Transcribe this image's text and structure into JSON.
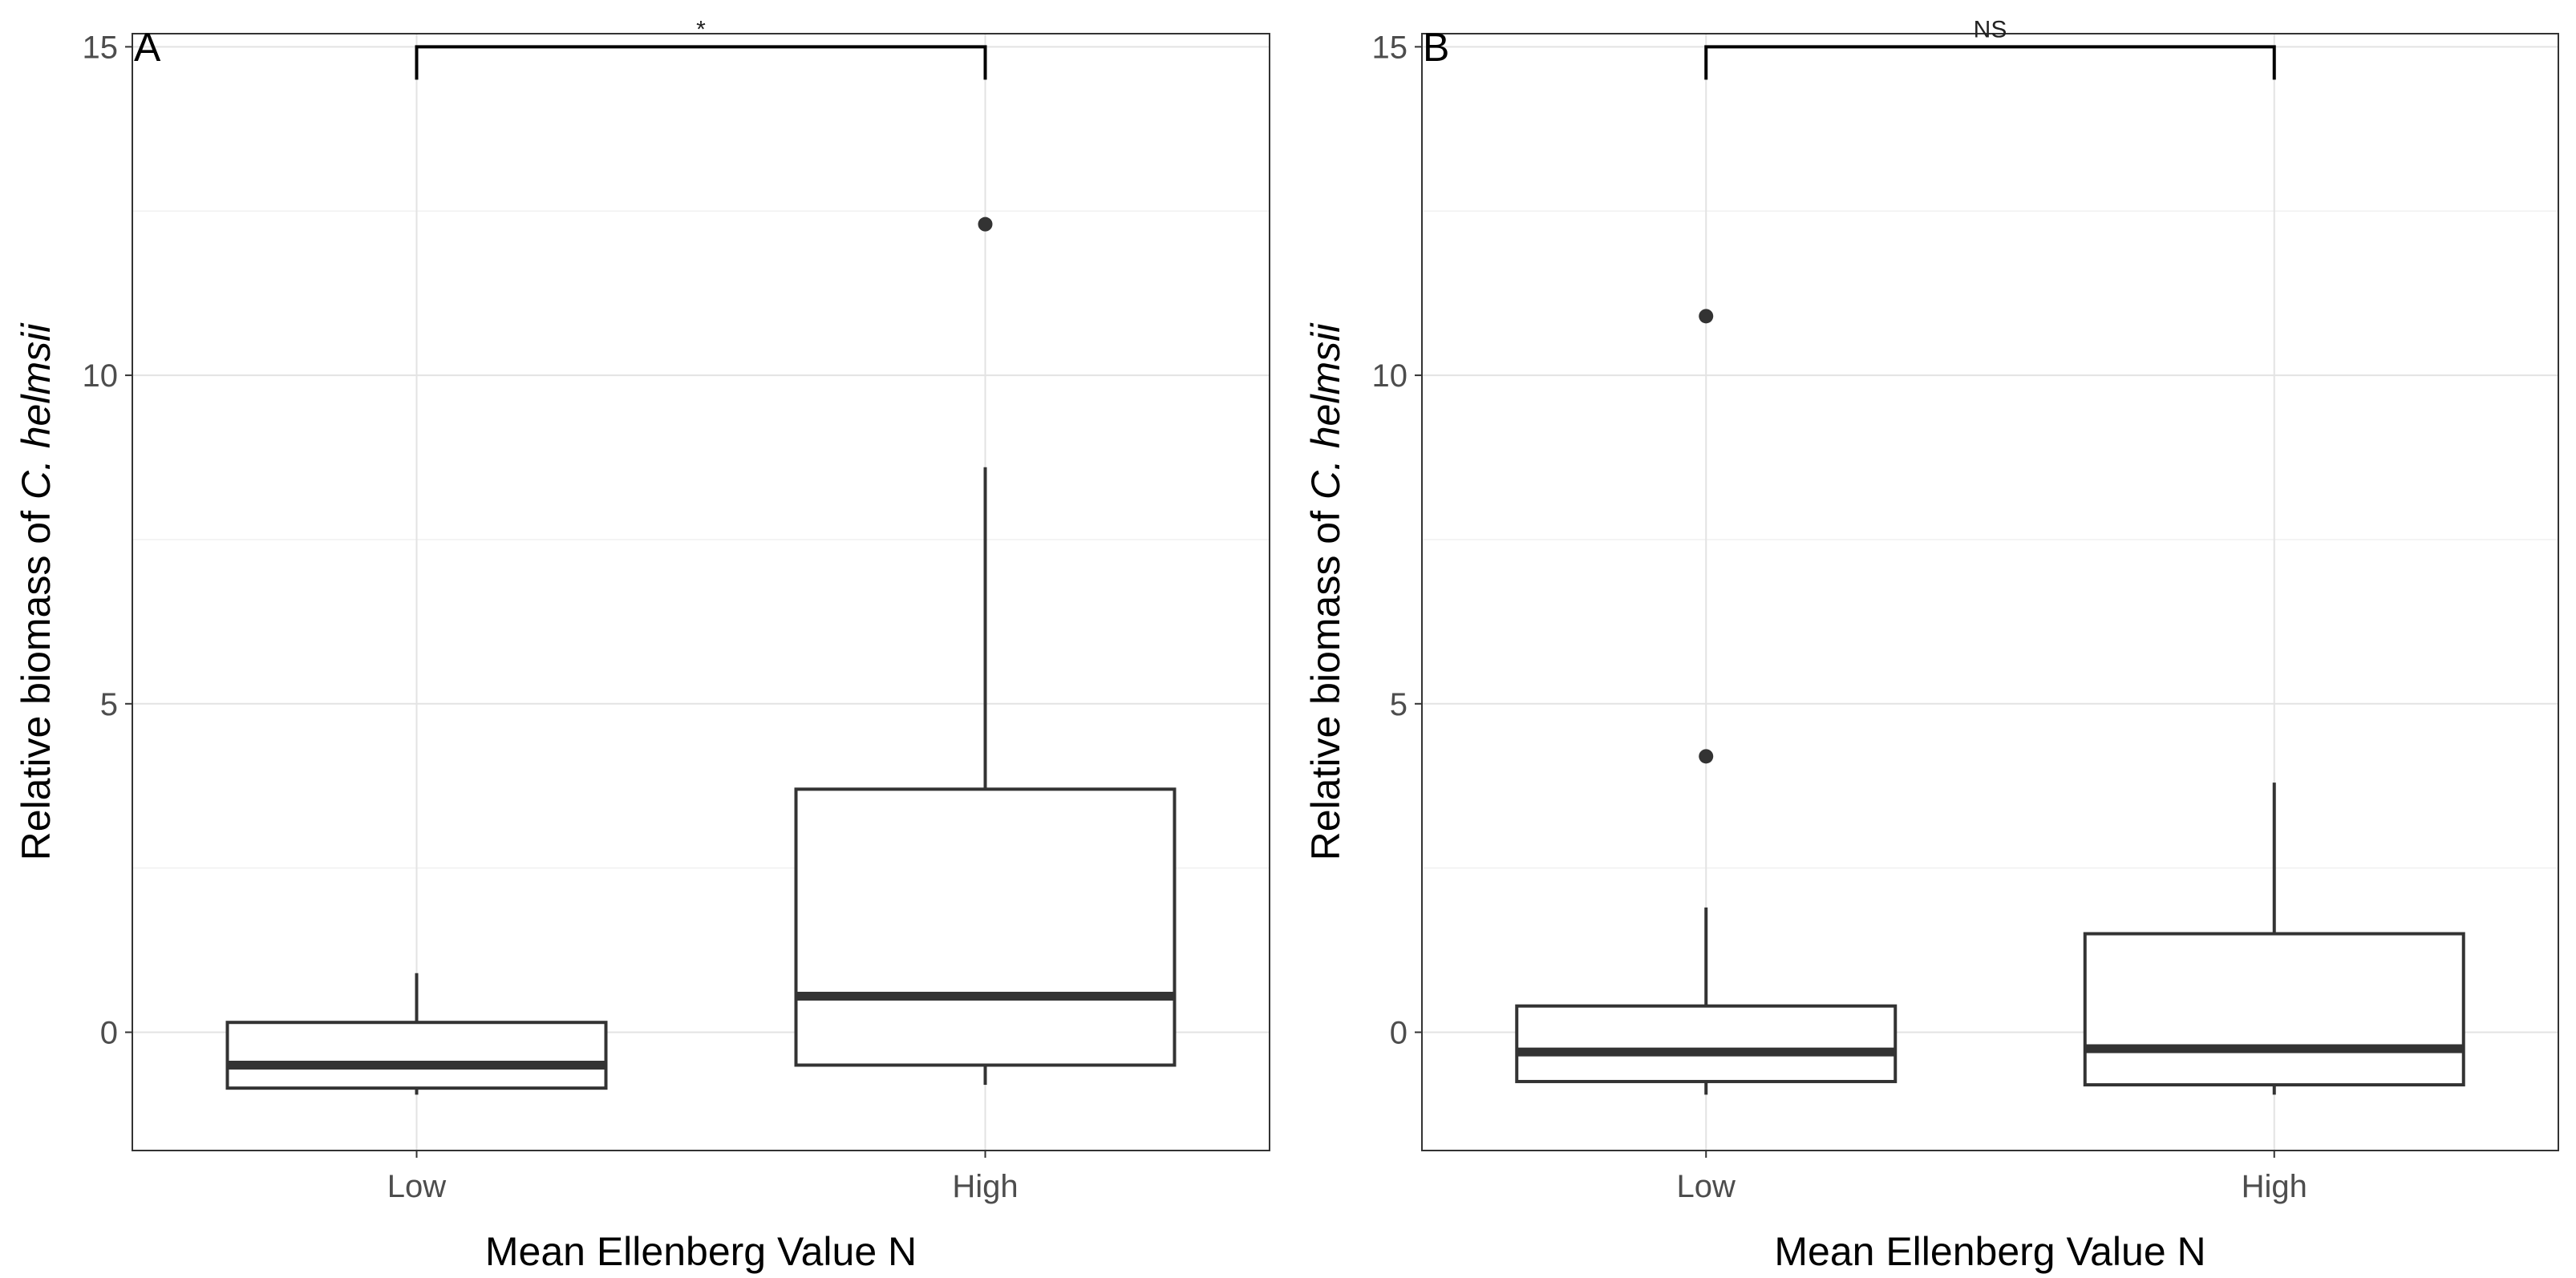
{
  "chart_data": [
    {
      "panel": "A",
      "type": "boxplot",
      "categories": [
        "Low",
        "High"
      ],
      "xlabel": "Mean Ellenberg Value N",
      "ylabel_prefix": "Relative biomass of ",
      "ylabel_italic": "C. helmsii",
      "ylim": [
        -1.8,
        15.2
      ],
      "yticks": [
        0,
        5,
        10,
        15
      ],
      "boxes": [
        {
          "category": "Low",
          "q1": -0.85,
          "median": -0.5,
          "q3": 0.15,
          "whisker_low": -0.95,
          "whisker_high": 0.9,
          "outliers": []
        },
        {
          "category": "High",
          "q1": -0.5,
          "median": 0.55,
          "q3": 3.7,
          "whisker_low": -0.8,
          "whisker_high": 8.6,
          "outliers": [
            12.3
          ]
        }
      ],
      "significance": {
        "label": "*",
        "y": 15.0,
        "drop": 0.5
      }
    },
    {
      "panel": "B",
      "type": "boxplot",
      "categories": [
        "Low",
        "High"
      ],
      "xlabel": "Mean Ellenberg Value N",
      "ylabel_prefix": "Relative biomass of ",
      "ylabel_italic": "C. helmsii",
      "ylim": [
        -1.8,
        15.2
      ],
      "yticks": [
        0,
        5,
        10,
        15
      ],
      "boxes": [
        {
          "category": "Low",
          "q1": -0.75,
          "median": -0.3,
          "q3": 0.4,
          "whisker_low": -0.95,
          "whisker_high": 1.9,
          "outliers": [
            4.2,
            10.9
          ]
        },
        {
          "category": "High",
          "q1": -0.8,
          "median": -0.25,
          "q3": 1.5,
          "whisker_low": -0.95,
          "whisker_high": 3.8,
          "outliers": []
        }
      ],
      "significance": {
        "label": "NS",
        "y": 15.0,
        "drop": 0.5
      }
    }
  ]
}
